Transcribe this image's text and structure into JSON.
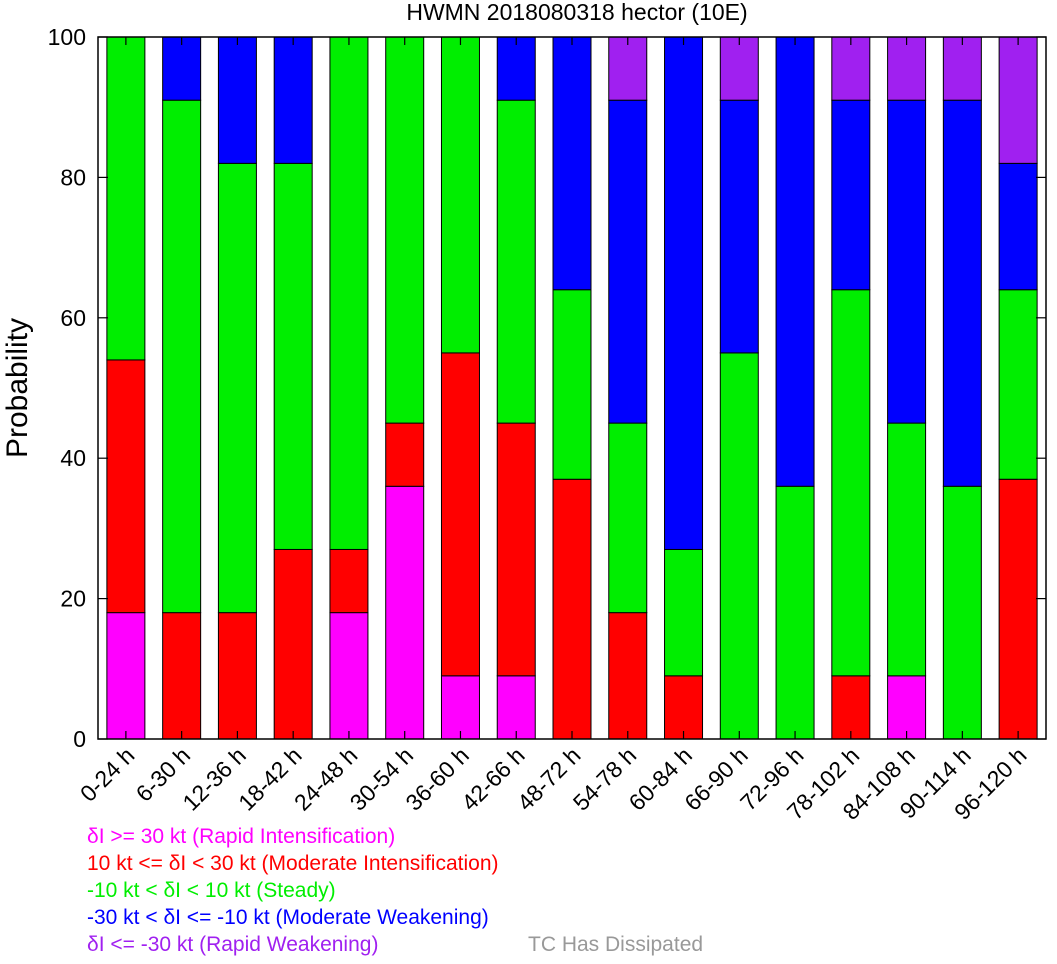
{
  "chart_data": {
    "type": "bar",
    "stacked": true,
    "title": "HWMN 2018080318 hector (10E)",
    "ylabel": "Probability",
    "xlabel": "",
    "ylim": [
      0,
      100
    ],
    "yticks": [
      0,
      20,
      40,
      60,
      80,
      100
    ],
    "grid": false,
    "categories": [
      "0-24 h",
      "6-30 h",
      "12-36 h",
      "18-42 h",
      "24-48 h",
      "30-54 h",
      "36-60 h",
      "42-66 h",
      "48-72 h",
      "54-78 h",
      "60-84 h",
      "66-90 h",
      "72-96 h",
      "78-102 h",
      "84-108 h",
      "90-114 h",
      "96-120 h"
    ],
    "series": [
      {
        "name": "δI >= 30 kt (Rapid Intensification)",
        "color": "#ff00ff",
        "values": [
          18,
          0,
          0,
          0,
          18,
          36,
          9,
          9,
          0,
          0,
          0,
          0,
          0,
          0,
          9,
          0,
          0
        ]
      },
      {
        "name": "10 kt <= δI < 30 kt (Moderate Intensification)",
        "color": "#ff0000",
        "values": [
          36,
          18,
          18,
          27,
          9,
          9,
          46,
          36,
          37,
          18,
          9,
          0,
          0,
          9,
          0,
          0,
          37
        ]
      },
      {
        "name": "-10 kt < δI < 10 kt (Steady)",
        "color": "#00ee00",
        "values": [
          46,
          73,
          64,
          55,
          73,
          55,
          45,
          46,
          27,
          27,
          18,
          55,
          36,
          55,
          36,
          36,
          27
        ]
      },
      {
        "name": "-30 kt < δI <= -10 kt (Moderate Weakening)",
        "color": "#0000ff",
        "values": [
          0,
          9,
          18,
          18,
          0,
          0,
          0,
          9,
          36,
          46,
          73,
          36,
          64,
          27,
          46,
          55,
          18
        ]
      },
      {
        "name": "δI <= -30 kt (Rapid Weakening)",
        "color": "#a020f0",
        "values": [
          0,
          0,
          0,
          0,
          0,
          0,
          0,
          0,
          0,
          9,
          0,
          9,
          0,
          9,
          9,
          9,
          18
        ]
      }
    ],
    "legend": {
      "placement": "bottom-left",
      "extra_label": "TC Has Dissipated",
      "extra_color": "#999999"
    }
  }
}
